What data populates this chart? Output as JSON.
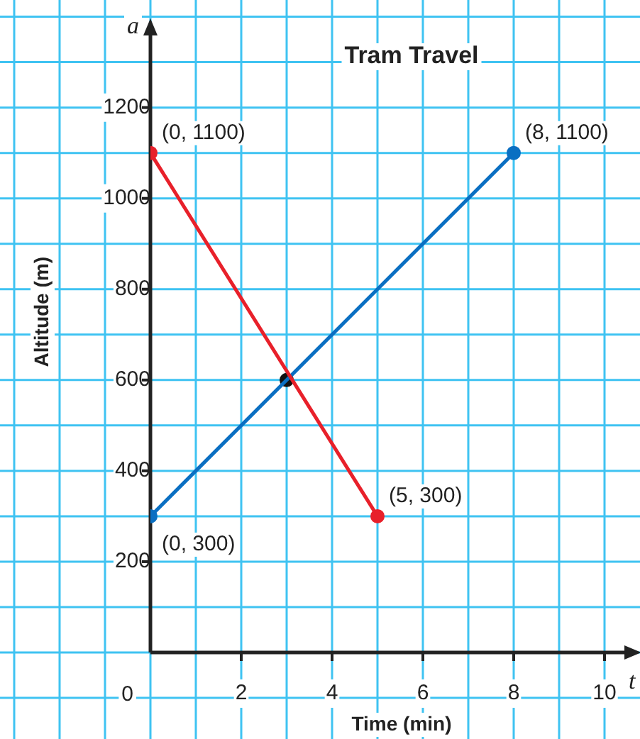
{
  "chart_data": {
    "type": "line",
    "title": "Tram Travel",
    "xlabel": "Time (min)",
    "ylabel": "Altitude (m)",
    "xlim": [
      0,
      10.5
    ],
    "ylim": [
      0,
      1365
    ],
    "xticks": [
      {
        "value": 0,
        "label": null
      },
      {
        "value": 1,
        "label": null
      },
      2,
      {
        "value": 3,
        "label": null
      },
      4,
      {
        "value": 5,
        "label": null
      },
      6,
      {
        "value": 7,
        "label": null
      },
      8,
      {
        "value": 9,
        "label": null
      },
      10
    ],
    "yticks": [
      {
        "value": 0,
        "label": null
      },
      {
        "value": 100,
        "label": null
      },
      200,
      {
        "value": 300,
        "label": null
      },
      400,
      {
        "value": 500,
        "label": null
      },
      600,
      {
        "value": 700,
        "label": null
      },
      800,
      {
        "value": 900,
        "label": null
      },
      1000,
      {
        "value": 1100,
        "label": null
      },
      1200,
      {
        "value": 1300,
        "label": null
      }
    ],
    "grid": true,
    "legend": false,
    "marker": "circle",
    "line_style": "solid",
    "series": [
      {
        "color": "#e8202a",
        "x": [
          0,
          5
        ],
        "values": [
          1100,
          300
        ]
      },
      {
        "color": "#0a6fc2",
        "x": [
          0,
          8
        ],
        "values": [
          300,
          1100
        ]
      },
      {
        "type": "scatter",
        "color": "#111111",
        "x": [
          3
        ],
        "values": [
          600
        ]
      }
    ],
    "annotations": [
      {
        "text": "(0, 1100)",
        "x": 0,
        "y": 1100
      },
      {
        "text": "(8, 1100)",
        "x": 8,
        "y": 1100
      },
      {
        "text": "(0, 300)",
        "x": 0,
        "y": 300
      },
      {
        "text": "(5, 300)",
        "x": 5,
        "y": 300
      },
      "a",
      "t",
      "0"
    ]
  }
}
